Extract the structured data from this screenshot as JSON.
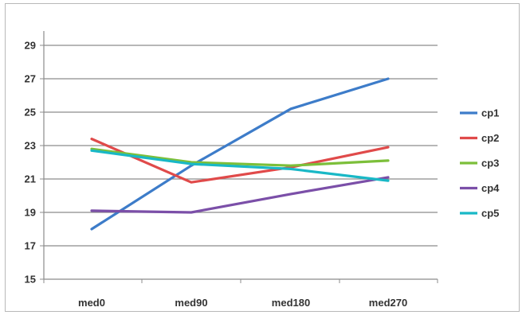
{
  "chart_data": {
    "type": "line",
    "categories": [
      "med0",
      "med90",
      "med180",
      "med270"
    ],
    "y_ticks": [
      15,
      17,
      19,
      21,
      23,
      25,
      27,
      29
    ],
    "ylim": [
      15,
      29
    ],
    "grid": true,
    "legend_position": "right",
    "series": [
      {
        "name": "cp1",
        "color": "#3d7cc9",
        "values": [
          18.0,
          21.8,
          25.2,
          27.0
        ]
      },
      {
        "name": "cp2",
        "color": "#e04a4a",
        "values": [
          23.4,
          20.8,
          21.7,
          22.9
        ]
      },
      {
        "name": "cp3",
        "color": "#7cbf3a",
        "values": [
          22.8,
          22.0,
          21.8,
          22.1
        ]
      },
      {
        "name": "cp4",
        "color": "#7b4fa8",
        "values": [
          19.1,
          19.0,
          20.1,
          21.1
        ]
      },
      {
        "name": "cp5",
        "color": "#19b8c6",
        "values": [
          22.7,
          21.9,
          21.6,
          20.9
        ]
      }
    ]
  }
}
